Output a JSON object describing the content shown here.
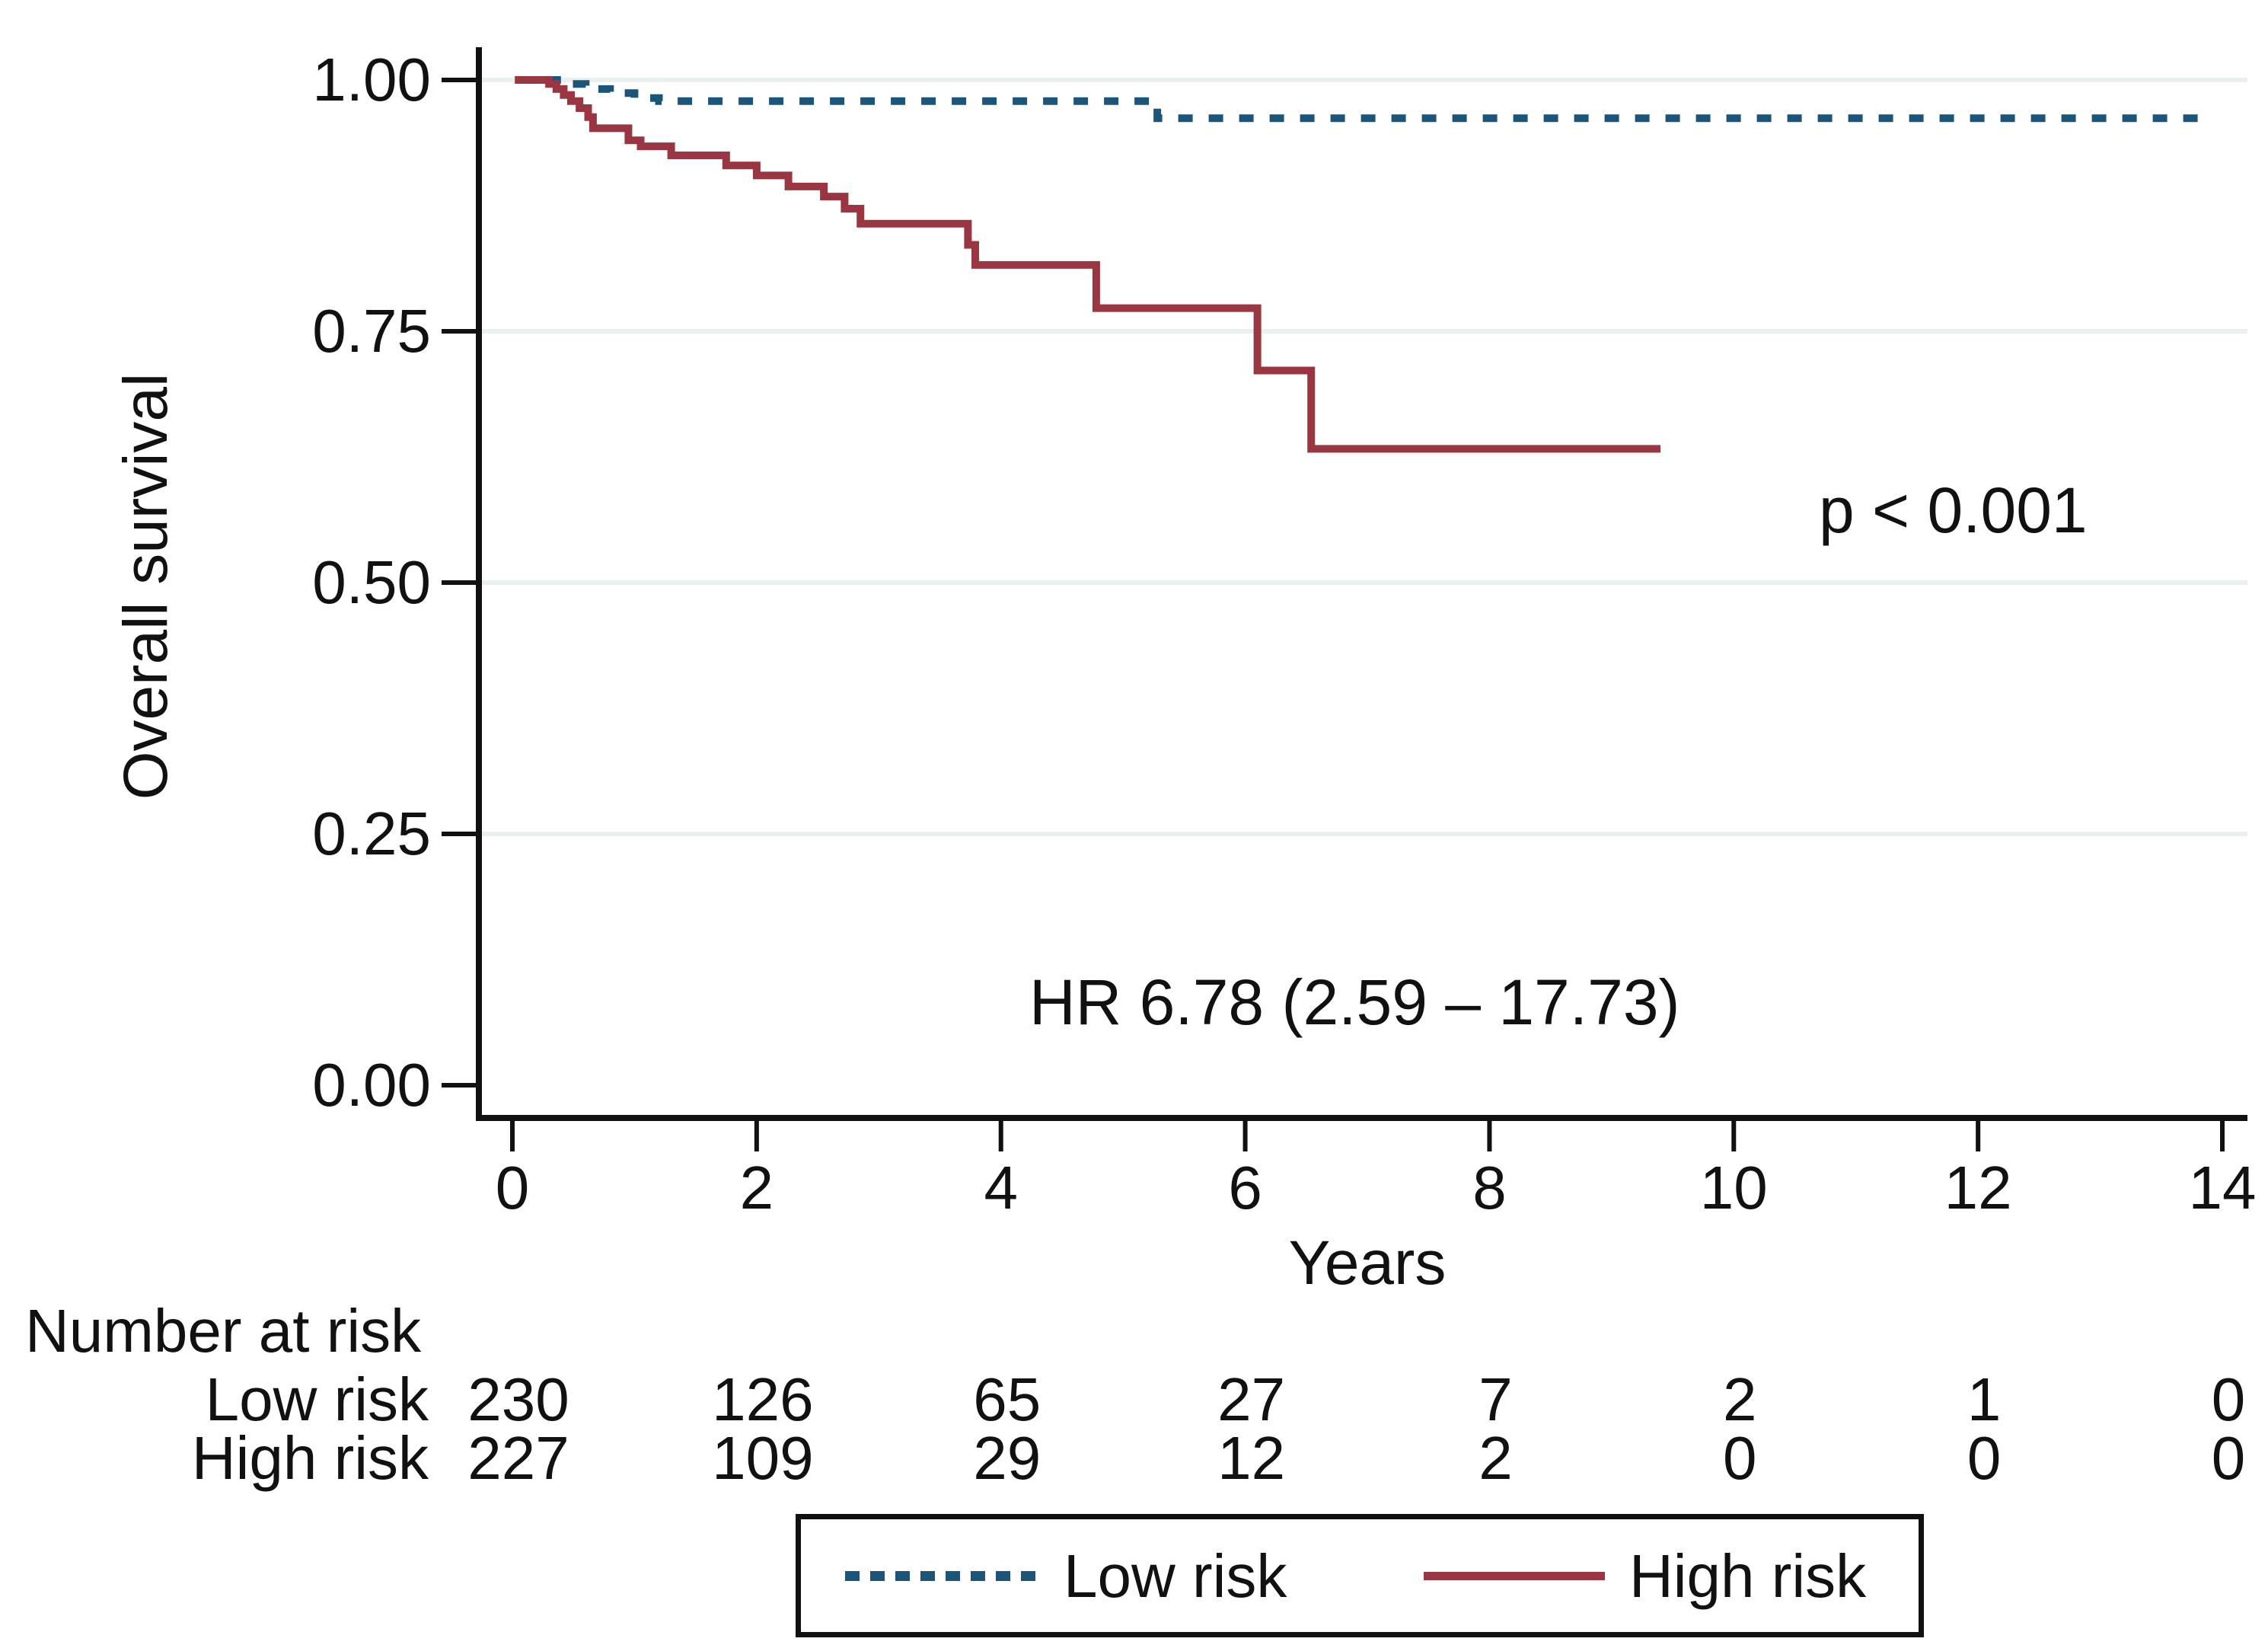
{
  "figure": {
    "background": "#ffffff",
    "axis_color": "#111111",
    "gridline_color": "#e9f0ee"
  },
  "chart_data": {
    "type": "line",
    "subtype": "kaplan-meier-step",
    "title": "",
    "xlabel": "Years",
    "ylabel": "Overall survival",
    "xlim": [
      0,
      14
    ],
    "ylim": [
      0.0,
      1.0
    ],
    "grid": "horizontal-light",
    "grid_y_values": [
      1.0,
      0.75,
      0.5,
      0.25
    ],
    "x_ticks": [
      {
        "value": 0,
        "label": "0"
      },
      {
        "value": 2,
        "label": "2"
      },
      {
        "value": 4,
        "label": "4"
      },
      {
        "value": 6,
        "label": "6"
      },
      {
        "value": 8,
        "label": "8"
      },
      {
        "value": 10,
        "label": "10"
      },
      {
        "value": 12,
        "label": "12"
      },
      {
        "value": 14,
        "label": "14"
      }
    ],
    "y_ticks": [
      {
        "value": 1.0,
        "label": "1.00"
      },
      {
        "value": 0.75,
        "label": "0.75"
      },
      {
        "value": 0.5,
        "label": "0.50"
      },
      {
        "value": 0.25,
        "label": "0.25"
      },
      {
        "value": 0.0,
        "label": "0.00"
      }
    ],
    "series": [
      {
        "name": "Low risk",
        "color": "#1b567a",
        "line_style": "dashed",
        "line_width": 10,
        "start": {
          "time": 0.03,
          "survival": 1.0
        },
        "end_time": 13.9,
        "steps": [
          [
            0.42,
            0.996
          ],
          [
            0.6,
            0.991
          ],
          [
            0.8,
            0.987
          ],
          [
            1.0,
            0.982
          ],
          [
            1.2,
            0.979
          ],
          [
            5.28,
            0.962
          ]
        ]
      },
      {
        "name": "High risk",
        "color": "#9a3642",
        "line_style": "solid",
        "line_width": 10,
        "start": {
          "time": 0.02,
          "survival": 1.0
        },
        "end_time": 9.4,
        "steps": [
          [
            0.3,
            0.996
          ],
          [
            0.36,
            0.991
          ],
          [
            0.42,
            0.985
          ],
          [
            0.48,
            0.979
          ],
          [
            0.55,
            0.972
          ],
          [
            0.62,
            0.963
          ],
          [
            0.66,
            0.952
          ],
          [
            0.95,
            0.94
          ],
          [
            1.05,
            0.934
          ],
          [
            1.3,
            0.925
          ],
          [
            1.75,
            0.915
          ],
          [
            2.0,
            0.905
          ],
          [
            2.26,
            0.894
          ],
          [
            2.55,
            0.884
          ],
          [
            2.72,
            0.872
          ],
          [
            2.85,
            0.857
          ],
          [
            3.73,
            0.836
          ],
          [
            3.79,
            0.816
          ],
          [
            4.78,
            0.773
          ],
          [
            6.1,
            0.711
          ],
          [
            6.54,
            0.633
          ]
        ]
      }
    ],
    "annotations": [
      {
        "text": "p < 0.001",
        "x": 11.7,
        "y": 0.58
      },
      {
        "text": "HR 6.78 (2.59 – 17.73)",
        "x": 6.9,
        "y": 0.07
      }
    ],
    "legend_position": "bottom-center-boxed"
  },
  "risk_table": {
    "title": "Number at risk",
    "times": [
      0,
      2,
      4,
      6,
      8,
      10,
      12,
      14
    ],
    "rows": [
      {
        "label": "Low risk",
        "values": [
          "230",
          "126",
          "65",
          "27",
          "7",
          "2",
          "1",
          "0"
        ]
      },
      {
        "label": "High risk",
        "values": [
          "227",
          "109",
          "29",
          "12",
          "2",
          "0",
          "0",
          "0"
        ]
      }
    ]
  },
  "legend": {
    "items": [
      {
        "label": "Low risk",
        "style": "dashed",
        "color": "#1b567a"
      },
      {
        "label": "High risk",
        "style": "solid",
        "color": "#9a3642"
      }
    ]
  }
}
